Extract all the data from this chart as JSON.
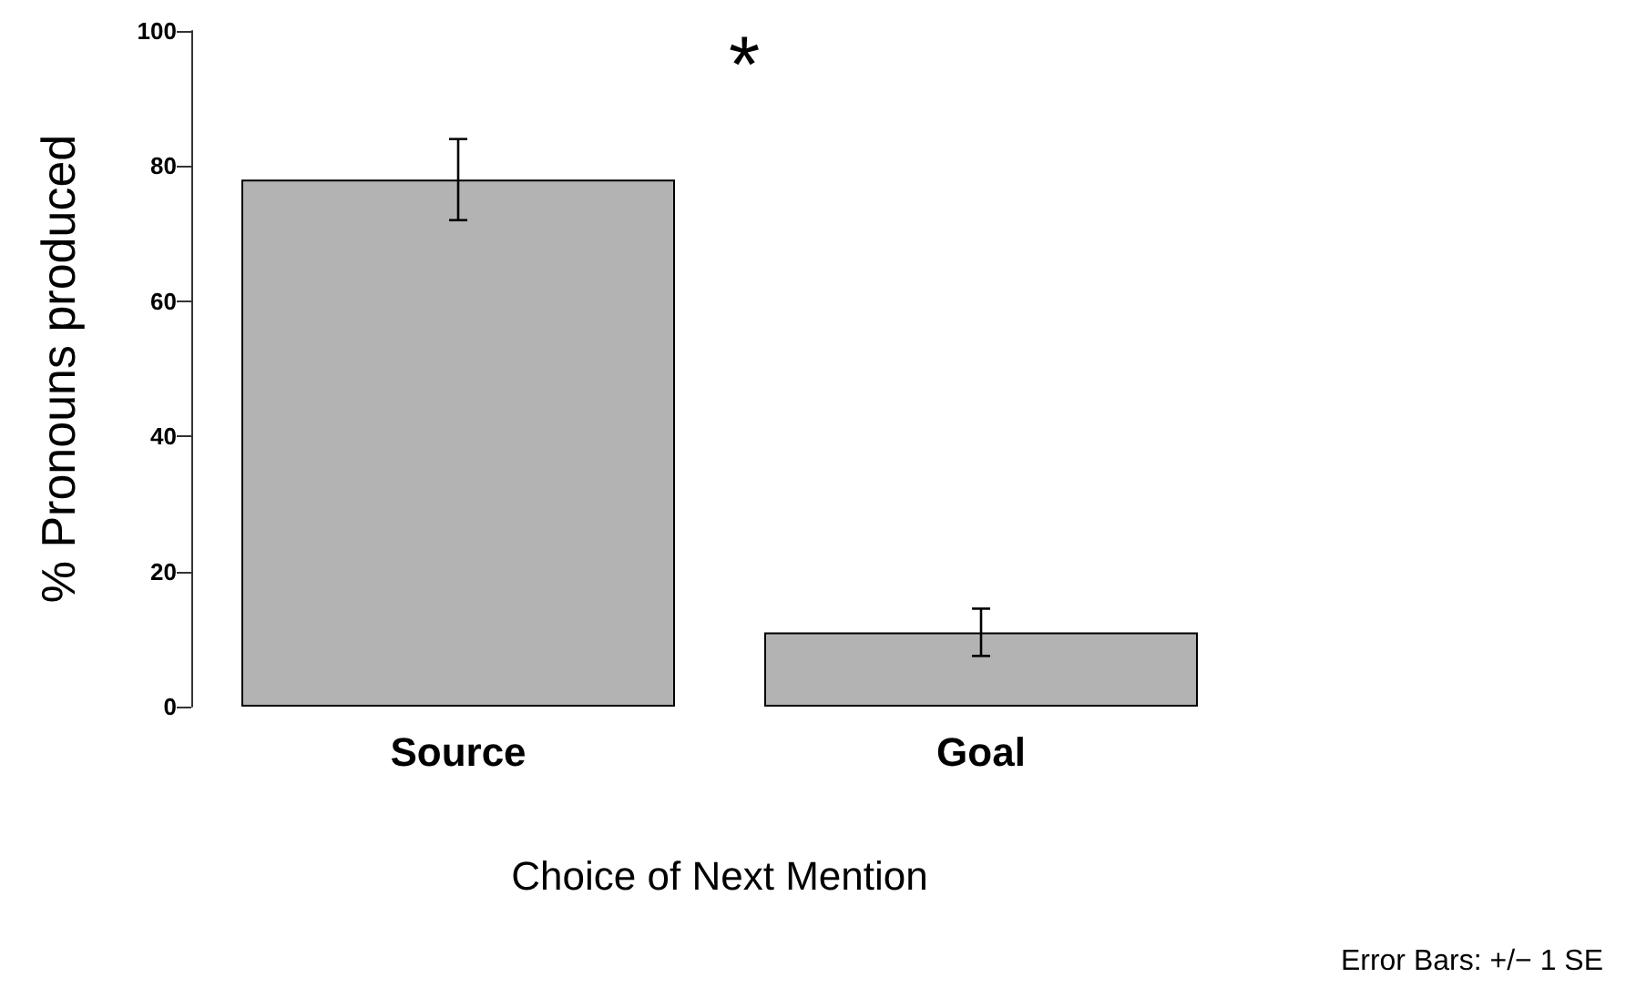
{
  "chart_data": {
    "type": "bar",
    "xlabel": "Choice of Next Mention",
    "ylabel": "% Pronouns produced",
    "categories": [
      "Source",
      "Goal"
    ],
    "values": [
      78,
      11
    ],
    "color": "#b3b3b3",
    "errors": [
      6,
      3.5
    ],
    "ylim": [
      0,
      100
    ],
    "yticks": [
      0,
      20,
      40,
      60,
      80,
      100
    ],
    "grid": false,
    "annotations": [
      "*",
      "Error Bars: +/− 1 SE"
    ]
  }
}
